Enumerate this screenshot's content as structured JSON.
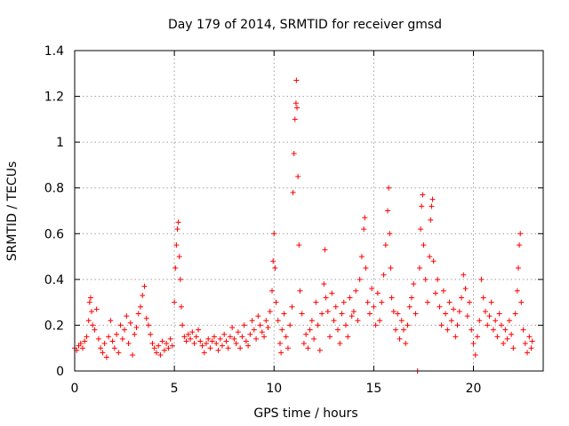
{
  "chart_data": {
    "type": "scatter",
    "title": "Day 179 of 2014, SRMTID for receiver gmsd",
    "xlabel": "GPS time / hours",
    "ylabel": "SRMTID / TECUs",
    "xlim": [
      0,
      23.5
    ],
    "ylim": [
      0,
      1.4
    ],
    "xticks": [
      0,
      5,
      10,
      15,
      20
    ],
    "yticks": [
      0,
      0.2,
      0.4,
      0.6,
      0.8,
      1.0,
      1.2,
      1.4
    ],
    "xtick_labels": [
      "0",
      "5",
      "10",
      "15",
      "20"
    ],
    "ytick_labels": [
      "0",
      "0.2",
      "0.4",
      "0.6",
      "0.8",
      "1",
      "1.2",
      "1.4"
    ],
    "grid": true,
    "marker": "+",
    "series": [
      {
        "name": "SRMTID",
        "color": "#ff0000",
        "points": [
          [
            0.0,
            0.1
          ],
          [
            0.1,
            0.09
          ],
          [
            0.2,
            0.11
          ],
          [
            0.3,
            0.12
          ],
          [
            0.4,
            0.1
          ],
          [
            0.5,
            0.13
          ],
          [
            0.6,
            0.15
          ],
          [
            0.7,
            0.22
          ],
          [
            0.75,
            0.3
          ],
          [
            0.8,
            0.32
          ],
          [
            0.85,
            0.26
          ],
          [
            0.9,
            0.2
          ],
          [
            1.0,
            0.18
          ],
          [
            1.1,
            0.27
          ],
          [
            1.2,
            0.14
          ],
          [
            1.3,
            0.1
          ],
          [
            1.4,
            0.08
          ],
          [
            1.5,
            0.12
          ],
          [
            1.6,
            0.06
          ],
          [
            1.7,
            0.15
          ],
          [
            1.8,
            0.22
          ],
          [
            1.9,
            0.13
          ],
          [
            2.0,
            0.1
          ],
          [
            2.1,
            0.16
          ],
          [
            2.2,
            0.08
          ],
          [
            2.3,
            0.2
          ],
          [
            2.4,
            0.14
          ],
          [
            2.5,
            0.18
          ],
          [
            2.6,
            0.24
          ],
          [
            2.7,
            0.12
          ],
          [
            2.8,
            0.21
          ],
          [
            2.9,
            0.07
          ],
          [
            3.0,
            0.16
          ],
          [
            3.1,
            0.19
          ],
          [
            3.2,
            0.25
          ],
          [
            3.3,
            0.28
          ],
          [
            3.4,
            0.33
          ],
          [
            3.5,
            0.37
          ],
          [
            3.6,
            0.23
          ],
          [
            3.7,
            0.2
          ],
          [
            3.8,
            0.16
          ],
          [
            3.9,
            0.12
          ],
          [
            4.0,
            0.1
          ],
          [
            4.1,
            0.08
          ],
          [
            4.2,
            0.11
          ],
          [
            4.3,
            0.07
          ],
          [
            4.4,
            0.13
          ],
          [
            4.5,
            0.09
          ],
          [
            4.6,
            0.12
          ],
          [
            4.7,
            0.1
          ],
          [
            4.8,
            0.14
          ],
          [
            4.9,
            0.11
          ],
          [
            5.0,
            0.3
          ],
          [
            5.05,
            0.45
          ],
          [
            5.1,
            0.55
          ],
          [
            5.15,
            0.62
          ],
          [
            5.2,
            0.65
          ],
          [
            5.25,
            0.5
          ],
          [
            5.3,
            0.4
          ],
          [
            5.35,
            0.28
          ],
          [
            5.4,
            0.2
          ],
          [
            5.5,
            0.15
          ],
          [
            5.6,
            0.13
          ],
          [
            5.7,
            0.16
          ],
          [
            5.8,
            0.14
          ],
          [
            5.9,
            0.17
          ],
          [
            6.0,
            0.12
          ],
          [
            6.1,
            0.15
          ],
          [
            6.2,
            0.18
          ],
          [
            6.3,
            0.13
          ],
          [
            6.4,
            0.11
          ],
          [
            6.5,
            0.08
          ],
          [
            6.6,
            0.12
          ],
          [
            6.7,
            0.14
          ],
          [
            6.8,
            0.1
          ],
          [
            6.9,
            0.13
          ],
          [
            7.0,
            0.15
          ],
          [
            7.1,
            0.12
          ],
          [
            7.2,
            0.09
          ],
          [
            7.3,
            0.14
          ],
          [
            7.4,
            0.11
          ],
          [
            7.5,
            0.16
          ],
          [
            7.6,
            0.13
          ],
          [
            7.7,
            0.1
          ],
          [
            7.8,
            0.15
          ],
          [
            7.9,
            0.19
          ],
          [
            8.0,
            0.14
          ],
          [
            8.1,
            0.12
          ],
          [
            8.2,
            0.17
          ],
          [
            8.3,
            0.1
          ],
          [
            8.4,
            0.15
          ],
          [
            8.5,
            0.2
          ],
          [
            8.6,
            0.13
          ],
          [
            8.7,
            0.11
          ],
          [
            8.8,
            0.16
          ],
          [
            8.9,
            0.22
          ],
          [
            9.0,
            0.18
          ],
          [
            9.1,
            0.14
          ],
          [
            9.2,
            0.24
          ],
          [
            9.3,
            0.2
          ],
          [
            9.4,
            0.17
          ],
          [
            9.5,
            0.15
          ],
          [
            9.6,
            0.22
          ],
          [
            9.7,
            0.19
          ],
          [
            9.8,
            0.26
          ],
          [
            9.9,
            0.35
          ],
          [
            9.95,
            0.48
          ],
          [
            10.0,
            0.6
          ],
          [
            10.05,
            0.45
          ],
          [
            10.1,
            0.3
          ],
          [
            10.2,
            0.22
          ],
          [
            10.3,
            0.12
          ],
          [
            10.35,
            0.08
          ],
          [
            10.4,
            0.18
          ],
          [
            10.5,
            0.25
          ],
          [
            10.6,
            0.15
          ],
          [
            10.7,
            0.1
          ],
          [
            10.8,
            0.2
          ],
          [
            10.9,
            0.28
          ],
          [
            10.95,
            0.78
          ],
          [
            11.0,
            0.95
          ],
          [
            11.05,
            1.1
          ],
          [
            11.1,
            1.17
          ],
          [
            11.12,
            1.27
          ],
          [
            11.15,
            1.15
          ],
          [
            11.2,
            0.85
          ],
          [
            11.25,
            0.55
          ],
          [
            11.3,
            0.35
          ],
          [
            11.4,
            0.25
          ],
          [
            11.5,
            0.12
          ],
          [
            11.6,
            0.16
          ],
          [
            11.7,
            0.1
          ],
          [
            11.8,
            0.18
          ],
          [
            11.9,
            0.22
          ],
          [
            12.0,
            0.14
          ],
          [
            12.1,
            0.3
          ],
          [
            12.2,
            0.2
          ],
          [
            12.3,
            0.09
          ],
          [
            12.4,
            0.25
          ],
          [
            12.5,
            0.38
          ],
          [
            12.55,
            0.53
          ],
          [
            12.6,
            0.32
          ],
          [
            12.7,
            0.26
          ],
          [
            12.8,
            0.15
          ],
          [
            12.9,
            0.34
          ],
          [
            13.0,
            0.22
          ],
          [
            13.1,
            0.28
          ],
          [
            13.2,
            0.18
          ],
          [
            13.3,
            0.12
          ],
          [
            13.4,
            0.25
          ],
          [
            13.5,
            0.3
          ],
          [
            13.6,
            0.2
          ],
          [
            13.7,
            0.15
          ],
          [
            13.8,
            0.32
          ],
          [
            13.9,
            0.24
          ],
          [
            14.0,
            0.26
          ],
          [
            14.1,
            0.35
          ],
          [
            14.2,
            0.22
          ],
          [
            14.3,
            0.4
          ],
          [
            14.4,
            0.5
          ],
          [
            14.5,
            0.62
          ],
          [
            14.55,
            0.67
          ],
          [
            14.6,
            0.45
          ],
          [
            14.7,
            0.3
          ],
          [
            14.8,
            0.25
          ],
          [
            14.9,
            0.36
          ],
          [
            15.0,
            0.28
          ],
          [
            15.1,
            0.2
          ],
          [
            15.2,
            0.34
          ],
          [
            15.3,
            0.22
          ],
          [
            15.4,
            0.3
          ],
          [
            15.5,
            0.42
          ],
          [
            15.6,
            0.55
          ],
          [
            15.7,
            0.7
          ],
          [
            15.75,
            0.8
          ],
          [
            15.8,
            0.6
          ],
          [
            15.85,
            0.45
          ],
          [
            15.9,
            0.32
          ],
          [
            16.0,
            0.26
          ],
          [
            16.1,
            0.18
          ],
          [
            16.2,
            0.25
          ],
          [
            16.3,
            0.14
          ],
          [
            16.4,
            0.22
          ],
          [
            16.5,
            0.18
          ],
          [
            16.6,
            0.12
          ],
          [
            16.7,
            0.2
          ],
          [
            16.8,
            0.28
          ],
          [
            16.9,
            0.32
          ],
          [
            17.0,
            0.38
          ],
          [
            17.1,
            0.25
          ],
          [
            17.2,
            0.0
          ],
          [
            17.3,
            0.45
          ],
          [
            17.35,
            0.62
          ],
          [
            17.4,
            0.72
          ],
          [
            17.45,
            0.77
          ],
          [
            17.5,
            0.55
          ],
          [
            17.6,
            0.4
          ],
          [
            17.7,
            0.3
          ],
          [
            17.8,
            0.5
          ],
          [
            17.85,
            0.66
          ],
          [
            17.9,
            0.72
          ],
          [
            17.95,
            0.75
          ],
          [
            18.0,
            0.48
          ],
          [
            18.1,
            0.34
          ],
          [
            18.2,
            0.4
          ],
          [
            18.3,
            0.28
          ],
          [
            18.4,
            0.2
          ],
          [
            18.5,
            0.35
          ],
          [
            18.6,
            0.25
          ],
          [
            18.7,
            0.18
          ],
          [
            18.8,
            0.3
          ],
          [
            18.9,
            0.22
          ],
          [
            19.0,
            0.27
          ],
          [
            19.1,
            0.15
          ],
          [
            19.2,
            0.2
          ],
          [
            19.3,
            0.26
          ],
          [
            19.4,
            0.32
          ],
          [
            19.5,
            0.42
          ],
          [
            19.6,
            0.36
          ],
          [
            19.7,
            0.24
          ],
          [
            19.8,
            0.3
          ],
          [
            19.9,
            0.18
          ],
          [
            20.0,
            0.12
          ],
          [
            20.1,
            0.07
          ],
          [
            20.2,
            0.15
          ],
          [
            20.3,
            0.22
          ],
          [
            20.4,
            0.4
          ],
          [
            20.5,
            0.32
          ],
          [
            20.6,
            0.26
          ],
          [
            20.7,
            0.2
          ],
          [
            20.8,
            0.24
          ],
          [
            20.9,
            0.3
          ],
          [
            21.0,
            0.18
          ],
          [
            21.1,
            0.22
          ],
          [
            21.2,
            0.15
          ],
          [
            21.3,
            0.25
          ],
          [
            21.4,
            0.2
          ],
          [
            21.5,
            0.12
          ],
          [
            21.6,
            0.18
          ],
          [
            21.7,
            0.14
          ],
          [
            21.8,
            0.22
          ],
          [
            21.9,
            0.16
          ],
          [
            22.0,
            0.1
          ],
          [
            22.1,
            0.25
          ],
          [
            22.2,
            0.35
          ],
          [
            22.25,
            0.45
          ],
          [
            22.3,
            0.55
          ],
          [
            22.35,
            0.6
          ],
          [
            22.4,
            0.3
          ],
          [
            22.5,
            0.18
          ],
          [
            22.6,
            0.12
          ],
          [
            22.7,
            0.08
          ],
          [
            22.8,
            0.15
          ],
          [
            22.9,
            0.1
          ],
          [
            22.95,
            0.13
          ]
        ]
      }
    ]
  }
}
